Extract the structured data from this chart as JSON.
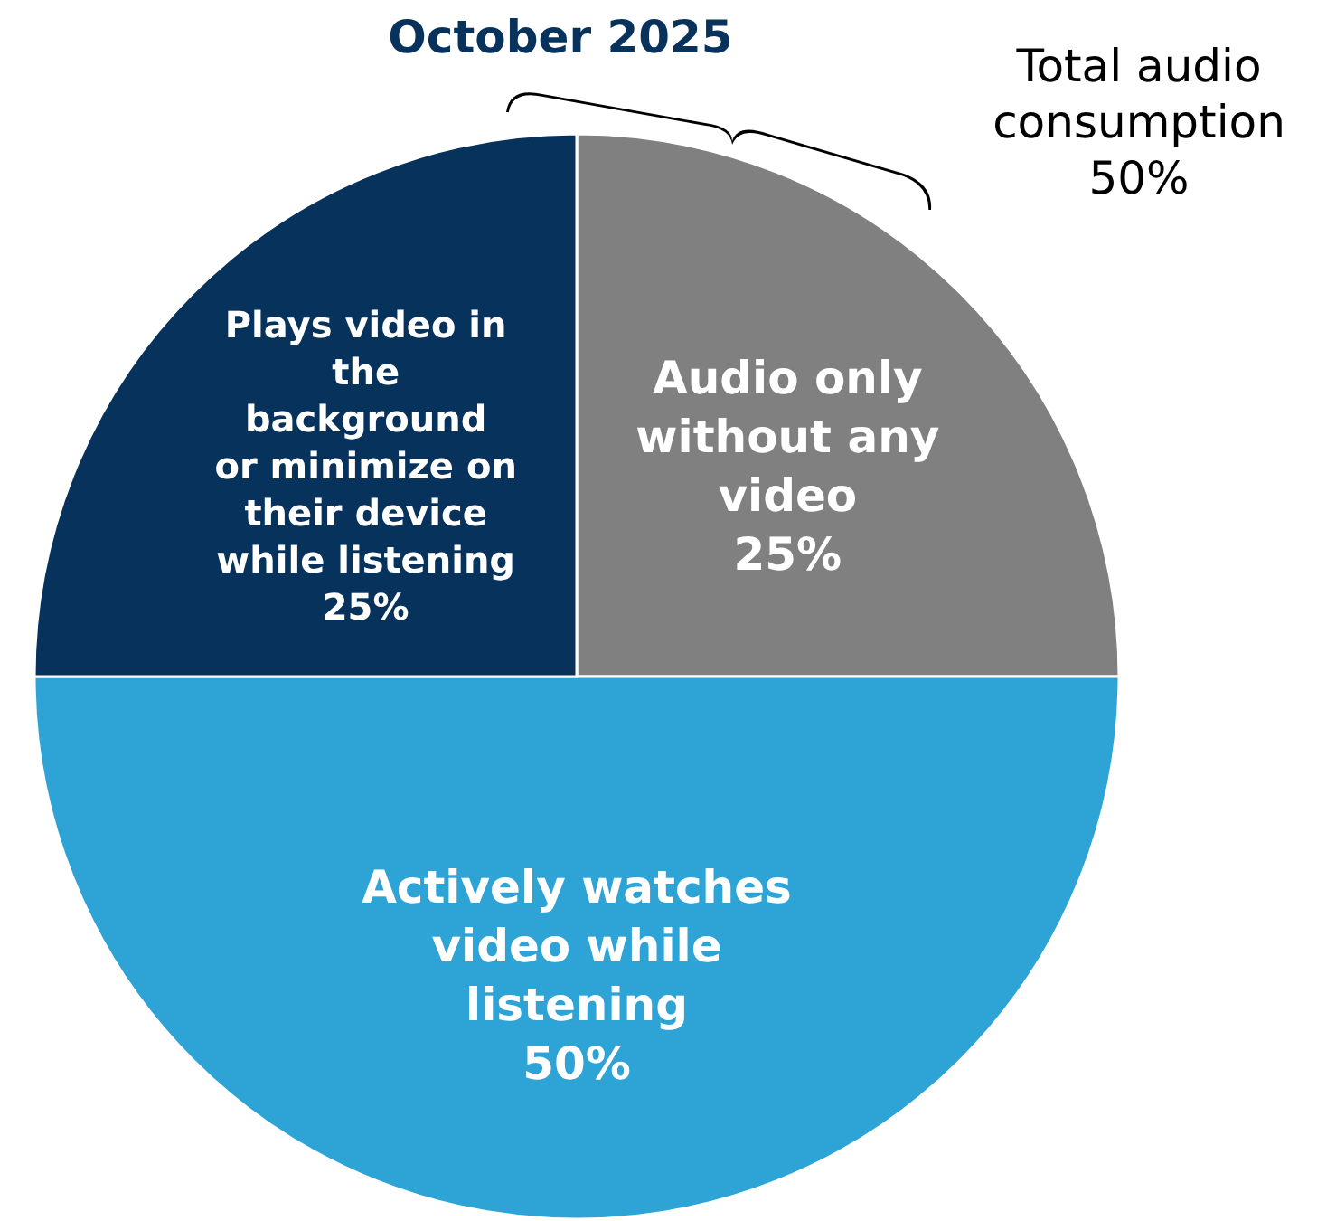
{
  "chart_data": {
    "type": "pie",
    "title": "October 2025",
    "categories": [
      "Audio only\nwithout any\nvideo",
      "Actively watches\nvideo while\nlistening",
      "Plays video in\nthe\nbackground\nor minimize on\ntheir device\nwhile listening"
    ],
    "values": [
      25,
      50,
      25
    ],
    "colors": [
      "#808080",
      "#2ea3d5",
      "#07325c"
    ],
    "value_labels": [
      "25%",
      "50%",
      "25%"
    ],
    "annotations": [
      "Total audio\nconsumption\n50%"
    ]
  }
}
